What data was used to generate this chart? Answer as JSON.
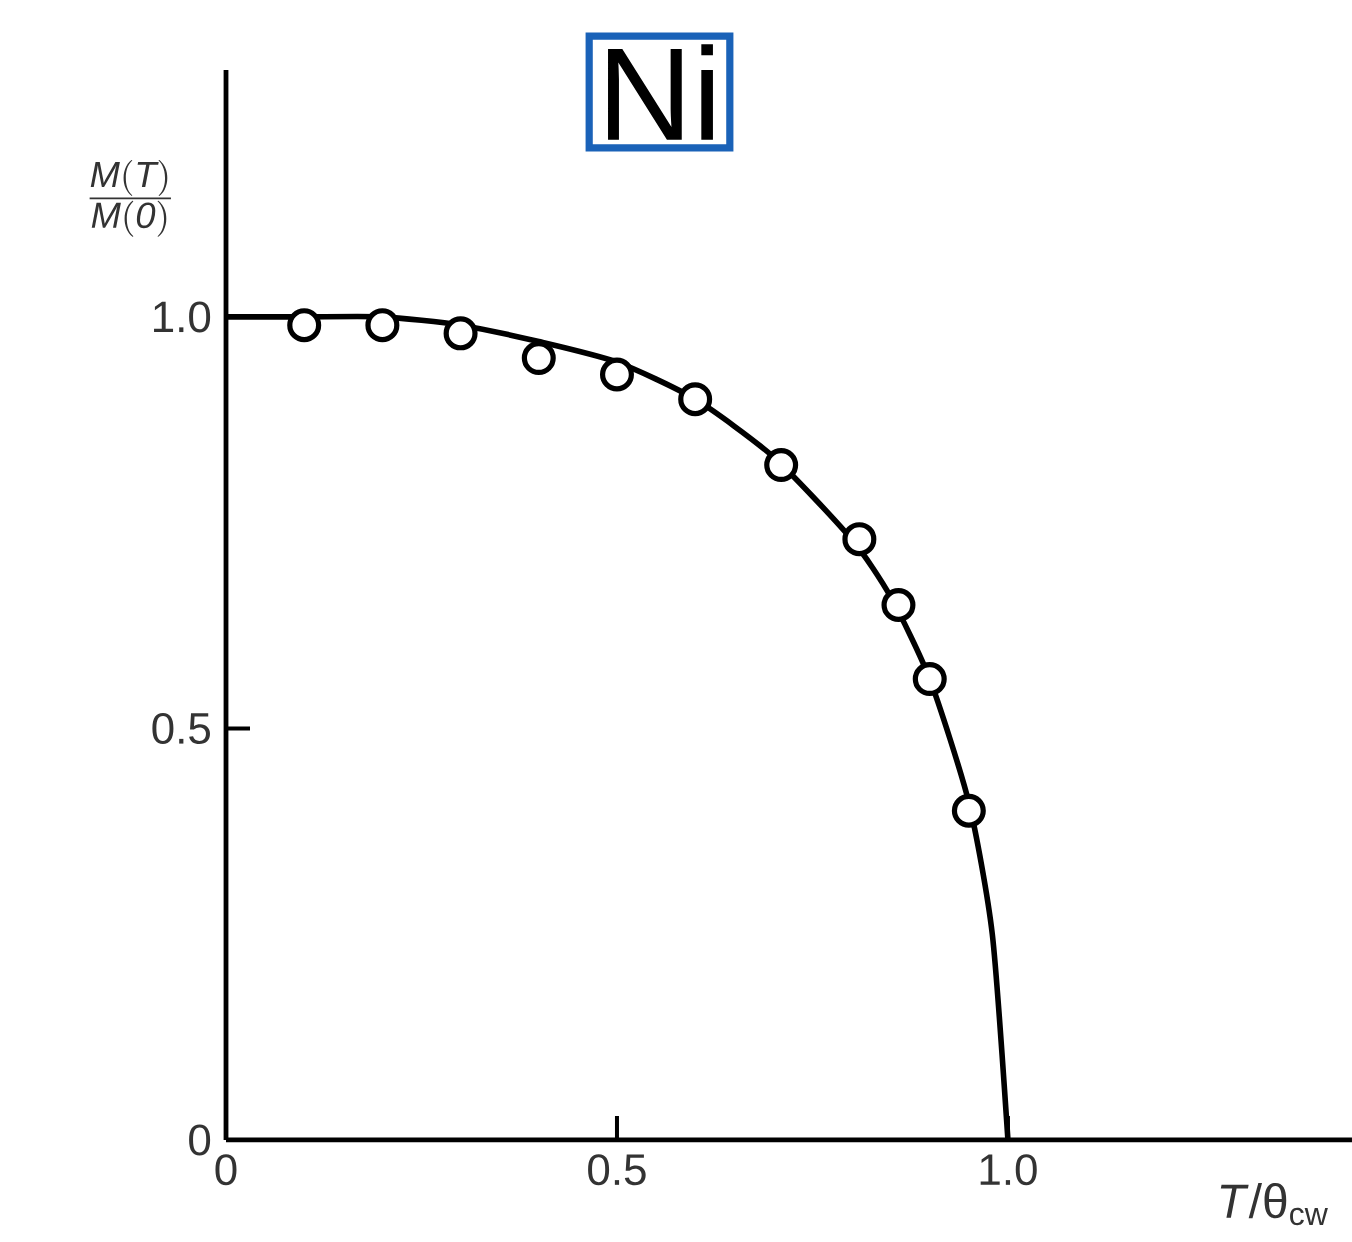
{
  "chart_data": {
    "type": "scatter",
    "title": "Ni",
    "xlabel": "*T*/θ$_{cw}$",
    "ylabel": "\\frac{\\mathit{M(T)}}{\\mathit{M(0)}}",
    "xlim": [
      0,
      1.44
    ],
    "ylim": [
      0,
      1.3
    ],
    "xticks": [
      0,
      0.5,
      {
        "value": 1.0,
        "label": "1.0"
      }
    ],
    "yticks": [
      0,
      0.5,
      {
        "value": 1.0,
        "label": "1.0"
      }
    ],
    "series": [
      {
        "type": "line",
        "color": "#000000",
        "marker": "none",
        "line_style": "solid",
        "x": [
          0,
          0.1,
          0.2,
          0.3,
          0.4,
          0.5,
          0.6,
          0.7,
          0.8,
          0.85,
          0.9,
          0.95,
          0.98,
          1.0
        ],
        "values": [
          1.0,
          1.0,
          1.0,
          0.99,
          0.97,
          0.945,
          0.9,
          0.83,
          0.73,
          0.66,
          0.56,
          0.41,
          0.25,
          0
        ]
      },
      {
        "color": "#000000",
        "marker": "circle",
        "x": [
          0.1,
          0.2,
          0.3,
          0.4,
          0.5,
          0.6,
          0.71,
          0.81,
          0.86,
          0.9,
          0.95
        ],
        "values": [
          0.99,
          0.99,
          0.98,
          0.95,
          0.93,
          0.9,
          0.82,
          0.73,
          0.65,
          0.56,
          0.4
        ]
      }
    ]
  }
}
